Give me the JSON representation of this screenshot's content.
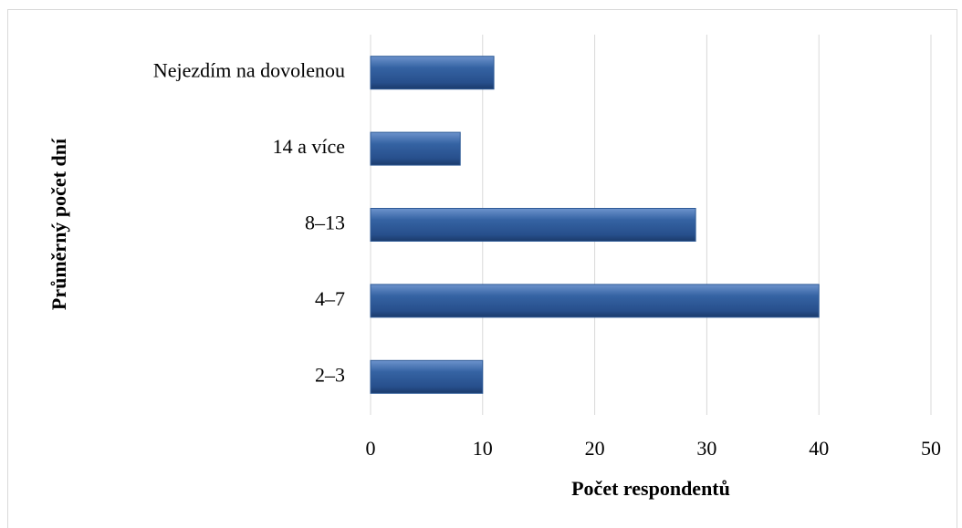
{
  "chart_data": {
    "type": "bar",
    "orientation": "horizontal",
    "categories": [
      "2–3",
      "4–7",
      "8–13",
      "14 a více",
      "Nejezdím na dovolenou"
    ],
    "values": [
      10,
      40,
      29,
      8,
      11
    ],
    "color": "#2f5b97",
    "xlabel": "Počet respondentů",
    "ylabel": "Průměrný počet dní",
    "xlim": [
      0,
      50
    ],
    "xticks": [
      0,
      10,
      20,
      30,
      40,
      50
    ],
    "grid": true
  }
}
